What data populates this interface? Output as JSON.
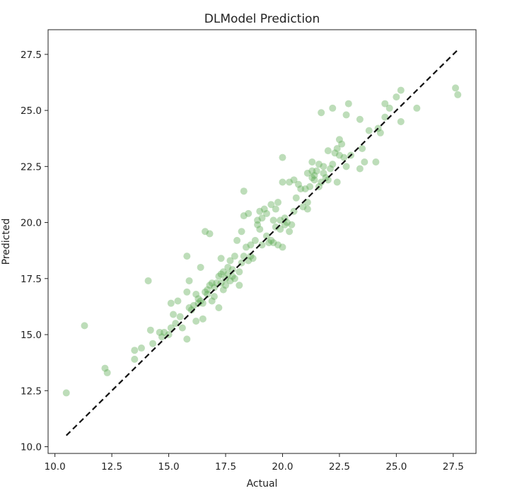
{
  "chart_data": {
    "type": "scatter",
    "title": "DLModel Prediction",
    "xlabel": "Actual",
    "ylabel": "Predicted",
    "xlim": [
      9.7,
      28.5
    ],
    "ylim": [
      9.7,
      28.6
    ],
    "xticks": [
      10.0,
      12.5,
      15.0,
      17.5,
      20.0,
      22.5,
      25.0,
      27.5
    ],
    "yticks": [
      10.0,
      12.5,
      15.0,
      17.5,
      20.0,
      22.5,
      25.0,
      27.5
    ],
    "xtick_labels": [
      "10.0",
      "12.5",
      "15.0",
      "17.5",
      "20.0",
      "22.5",
      "25.0",
      "27.5"
    ],
    "ytick_labels": [
      "10.0",
      "12.5",
      "15.0",
      "17.5",
      "20.0",
      "22.5",
      "25.0",
      "27.5"
    ],
    "grid": false,
    "point_color": "#5aaa50",
    "point_opacity": 0.4,
    "reference_line": {
      "from": [
        10.5,
        10.5
      ],
      "to": [
        27.7,
        27.7
      ],
      "style": "dashed",
      "color": "#111111"
    },
    "points": [
      [
        10.5,
        12.4
      ],
      [
        11.3,
        15.4
      ],
      [
        12.2,
        13.5
      ],
      [
        12.3,
        13.3
      ],
      [
        13.5,
        14.3
      ],
      [
        13.5,
        13.9
      ],
      [
        13.8,
        14.4
      ],
      [
        14.1,
        17.4
      ],
      [
        14.2,
        15.2
      ],
      [
        14.3,
        14.6
      ],
      [
        14.6,
        15.1
      ],
      [
        14.7,
        14.9
      ],
      [
        14.8,
        15.1
      ],
      [
        15.0,
        15.0
      ],
      [
        15.1,
        15.3
      ],
      [
        15.1,
        16.4
      ],
      [
        15.2,
        15.9
      ],
      [
        15.3,
        15.5
      ],
      [
        15.4,
        16.5
      ],
      [
        15.5,
        15.8
      ],
      [
        15.6,
        15.3
      ],
      [
        15.8,
        14.8
      ],
      [
        15.8,
        16.9
      ],
      [
        15.8,
        18.5
      ],
      [
        15.9,
        17.4
      ],
      [
        15.9,
        16.2
      ],
      [
        16.0,
        16.1
      ],
      [
        16.1,
        16.3
      ],
      [
        16.2,
        16.8
      ],
      [
        16.2,
        15.6
      ],
      [
        16.3,
        16.6
      ],
      [
        16.3,
        16.4
      ],
      [
        16.4,
        18.0
      ],
      [
        16.4,
        16.5
      ],
      [
        16.5,
        15.7
      ],
      [
        16.5,
        16.4
      ],
      [
        16.6,
        16.9
      ],
      [
        16.6,
        19.6
      ],
      [
        16.7,
        17.0
      ],
      [
        16.7,
        16.8
      ],
      [
        16.8,
        17.2
      ],
      [
        16.8,
        19.5
      ],
      [
        16.9,
        16.5
      ],
      [
        16.9,
        17.3
      ],
      [
        17.0,
        17.1
      ],
      [
        17.0,
        16.7
      ],
      [
        17.1,
        17.3
      ],
      [
        17.2,
        16.2
      ],
      [
        17.2,
        17.6
      ],
      [
        17.3,
        17.7
      ],
      [
        17.3,
        18.4
      ],
      [
        17.3,
        17.3
      ],
      [
        17.4,
        17.0
      ],
      [
        17.4,
        17.8
      ],
      [
        17.5,
        17.2
      ],
      [
        17.5,
        17.5
      ],
      [
        17.6,
        18.0
      ],
      [
        17.6,
        17.7
      ],
      [
        17.7,
        18.3
      ],
      [
        17.7,
        17.4
      ],
      [
        17.8,
        17.9
      ],
      [
        17.8,
        17.6
      ],
      [
        17.9,
        18.5
      ],
      [
        17.9,
        17.5
      ],
      [
        18.0,
        19.2
      ],
      [
        18.1,
        17.2
      ],
      [
        18.1,
        17.8
      ],
      [
        18.2,
        18.2
      ],
      [
        18.2,
        19.6
      ],
      [
        18.3,
        20.3
      ],
      [
        18.3,
        21.4
      ],
      [
        18.3,
        18.5
      ],
      [
        18.4,
        18.9
      ],
      [
        18.5,
        20.4
      ],
      [
        18.5,
        18.3
      ],
      [
        18.6,
        19.0
      ],
      [
        18.6,
        18.5
      ],
      [
        18.7,
        18.4
      ],
      [
        18.8,
        19.2
      ],
      [
        18.9,
        20.1
      ],
      [
        18.9,
        19.9
      ],
      [
        19.0,
        20.5
      ],
      [
        19.0,
        19.7
      ],
      [
        19.1,
        19.0
      ],
      [
        19.1,
        20.2
      ],
      [
        19.2,
        20.6
      ],
      [
        19.3,
        19.4
      ],
      [
        19.3,
        20.4
      ],
      [
        19.4,
        19.1
      ],
      [
        19.5,
        20.8
      ],
      [
        19.5,
        19.2
      ],
      [
        19.6,
        19.1
      ],
      [
        19.6,
        20.1
      ],
      [
        19.7,
        19.8
      ],
      [
        19.7,
        20.6
      ],
      [
        19.8,
        20.9
      ],
      [
        19.8,
        19.0
      ],
      [
        19.9,
        19.7
      ],
      [
        19.9,
        20.1
      ],
      [
        20.0,
        18.9
      ],
      [
        20.0,
        21.8
      ],
      [
        20.0,
        22.9
      ],
      [
        20.1,
        19.9
      ],
      [
        20.1,
        20.2
      ],
      [
        20.2,
        20.0
      ],
      [
        20.3,
        19.6
      ],
      [
        20.3,
        21.8
      ],
      [
        20.4,
        19.9
      ],
      [
        20.5,
        21.9
      ],
      [
        20.5,
        20.5
      ],
      [
        20.6,
        21.1
      ],
      [
        20.7,
        21.7
      ],
      [
        20.8,
        21.5
      ],
      [
        20.9,
        20.7
      ],
      [
        21.0,
        21.5
      ],
      [
        21.1,
        20.6
      ],
      [
        21.1,
        20.9
      ],
      [
        21.1,
        22.2
      ],
      [
        21.2,
        21.6
      ],
      [
        21.3,
        22.7
      ],
      [
        21.3,
        22.0
      ],
      [
        21.3,
        22.3
      ],
      [
        21.4,
        21.9
      ],
      [
        21.4,
        22.1
      ],
      [
        21.5,
        22.3
      ],
      [
        21.6,
        21.6
      ],
      [
        21.6,
        22.6
      ],
      [
        21.7,
        24.9
      ],
      [
        21.7,
        21.8
      ],
      [
        21.8,
        22.2
      ],
      [
        21.8,
        22.5
      ],
      [
        21.9,
        22.0
      ],
      [
        22.0,
        23.2
      ],
      [
        22.0,
        21.9
      ],
      [
        22.1,
        22.4
      ],
      [
        22.2,
        25.1
      ],
      [
        22.2,
        22.6
      ],
      [
        22.3,
        23.1
      ],
      [
        22.4,
        23.3
      ],
      [
        22.4,
        21.8
      ],
      [
        22.5,
        23.0
      ],
      [
        22.5,
        23.7
      ],
      [
        22.6,
        23.5
      ],
      [
        22.7,
        22.9
      ],
      [
        22.8,
        22.5
      ],
      [
        22.8,
        24.8
      ],
      [
        22.9,
        25.3
      ],
      [
        23.0,
        23.0
      ],
      [
        23.4,
        22.4
      ],
      [
        23.4,
        24.6
      ],
      [
        23.5,
        23.3
      ],
      [
        23.6,
        22.7
      ],
      [
        23.8,
        24.1
      ],
      [
        24.1,
        22.7
      ],
      [
        24.2,
        24.2
      ],
      [
        24.3,
        24.0
      ],
      [
        24.5,
        25.3
      ],
      [
        24.5,
        24.7
      ],
      [
        24.7,
        25.1
      ],
      [
        25.0,
        25.6
      ],
      [
        25.2,
        25.9
      ],
      [
        25.2,
        24.5
      ],
      [
        25.9,
        25.1
      ],
      [
        27.6,
        26.0
      ],
      [
        27.7,
        25.7
      ]
    ]
  }
}
